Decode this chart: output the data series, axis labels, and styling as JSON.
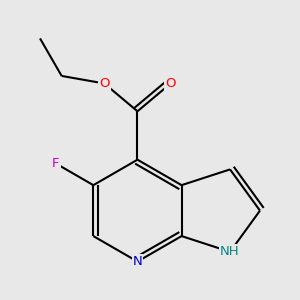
{
  "bg_color": "#e8e8e8",
  "bond_color": "#000000",
  "line_width": 1.5,
  "atom_colors": {
    "O": "#ff0000",
    "N_pyridine": "#0000cc",
    "N_pyrrole": "#008888",
    "F": "#cc00cc",
    "C": "#000000"
  },
  "font_size": 9.5,
  "figsize": [
    3.0,
    3.0
  ],
  "dpi": 100
}
